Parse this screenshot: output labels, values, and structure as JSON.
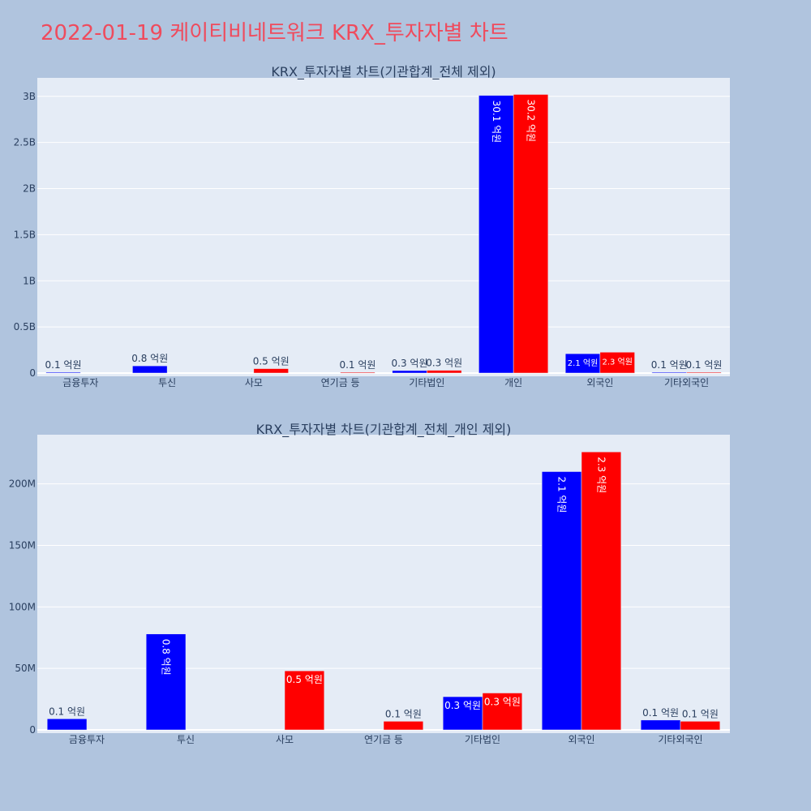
{
  "page": {
    "title": "2022-01-19 케이티비네트워크 KRX_투자자별 차트",
    "title_color": "#ef4b5d",
    "background": "#b0c4de",
    "plot_background": "#e5ecf6"
  },
  "chart_data": [
    {
      "type": "bar",
      "title": "KRX_투자자별 차트(기관합계_전체 제외)",
      "categories": [
        "금융투자",
        "투신",
        "사모",
        "연기금 등",
        "기타법인",
        "개인",
        "외국인",
        "기타외국인"
      ],
      "series": [
        {
          "color": "#0000ff",
          "values": [
            9000000,
            78000000,
            0,
            0,
            27000000,
            3010000000,
            210000000,
            8000000
          ],
          "labels": [
            "0.1 억원",
            "0.8 억원",
            "",
            "",
            "0.3 억원",
            "30.1 억원",
            "2.1 억원",
            "0.1 억원"
          ]
        },
        {
          "color": "#ff0000",
          "values": [
            0,
            0,
            48000000,
            7000000,
            30000000,
            3020000000,
            226000000,
            7000000
          ],
          "labels": [
            "",
            "",
            "0.5 억원",
            "0.1 억원",
            "0.3 억원",
            "30.2 억원",
            "2.3 억원",
            "0.1 억원"
          ]
        }
      ],
      "ylim": [
        0,
        3200000000
      ],
      "yticks": [
        0,
        500000000,
        1000000000,
        1500000000,
        2000000000,
        2500000000,
        3000000000
      ],
      "ytick_labels": [
        "0",
        "0.5B",
        "1B",
        "1.5B",
        "2B",
        "2.5B",
        "3B"
      ],
      "grid": true
    },
    {
      "type": "bar",
      "title": "KRX_투자자별 차트(기관합계_전체_개인 제외)",
      "categories": [
        "금융투자",
        "투신",
        "사모",
        "연기금 등",
        "기타법인",
        "외국인",
        "기타외국인"
      ],
      "series": [
        {
          "color": "#0000ff",
          "values": [
            9000000,
            78000000,
            0,
            0,
            27000000,
            210000000,
            8000000
          ],
          "labels": [
            "0.1 억원",
            "0.8 억원",
            "",
            "",
            "0.3 억원",
            "2.1 억원",
            "0.1 억원"
          ]
        },
        {
          "color": "#ff0000",
          "values": [
            0,
            0,
            48000000,
            7000000,
            30000000,
            226000000,
            7000000
          ],
          "labels": [
            "",
            "",
            "0.5 억원",
            "0.1 억원",
            "0.3 억원",
            "2.3 억원",
            "0.1 억원"
          ]
        }
      ],
      "ylim": [
        0,
        240000000
      ],
      "yticks": [
        0,
        50000000,
        100000000,
        150000000,
        200000000
      ],
      "ytick_labels": [
        "0",
        "50M",
        "100M",
        "150M",
        "200M"
      ],
      "grid": true
    }
  ]
}
